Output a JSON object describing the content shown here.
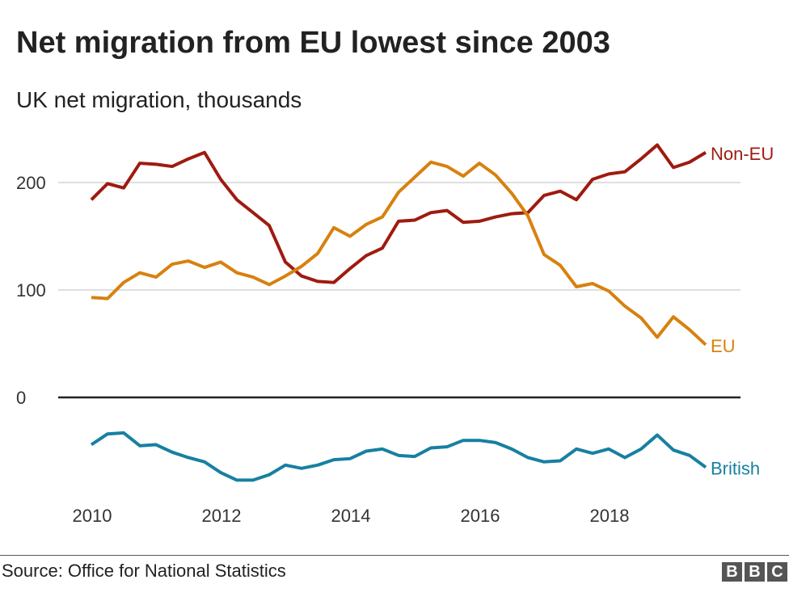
{
  "chart_data": {
    "type": "line",
    "title": "Net migration from EU lowest since 2003",
    "subtitle": "UK net migration, thousands",
    "xlabel": "",
    "ylabel": "",
    "xlim": [
      2010,
      2019.5
    ],
    "ylim": [
      -90,
      245
    ],
    "x_ticks": [
      2010,
      2012,
      2014,
      2016,
      2018
    ],
    "y_ticks": [
      0,
      100,
      200
    ],
    "grid": "horizontal",
    "legend": "direct labels at line ends (right)",
    "x": [
      2010,
      2010.25,
      2010.5,
      2010.75,
      2011,
      2011.25,
      2011.5,
      2011.75,
      2012,
      2012.25,
      2012.5,
      2012.75,
      2013,
      2013.25,
      2013.5,
      2013.75,
      2014,
      2014.25,
      2014.5,
      2014.75,
      2015,
      2015.25,
      2015.5,
      2015.75,
      2016,
      2016.25,
      2016.5,
      2016.75,
      2017,
      2017.25,
      2017.5,
      2017.75,
      2018,
      2018.25,
      2018.5,
      2018.75,
      2019,
      2019.25,
      2019.5
    ],
    "series": [
      {
        "name": "Non-EU",
        "color": "#9e1b10",
        "values": [
          184,
          199,
          195,
          218,
          217,
          215,
          222,
          228,
          203,
          184,
          172,
          160,
          126,
          113,
          108,
          107,
          120,
          132,
          139,
          164,
          165,
          172,
          174,
          163,
          164,
          168,
          171,
          172,
          188,
          192,
          184,
          203,
          208,
          210,
          222,
          235,
          214,
          219,
          228
        ]
      },
      {
        "name": "EU",
        "color": "#d7810e",
        "values": [
          93,
          92,
          107,
          116,
          112,
          124,
          127,
          121,
          126,
          116,
          112,
          105,
          113,
          122,
          134,
          158,
          150,
          161,
          168,
          191,
          205,
          219,
          215,
          206,
          218,
          207,
          190,
          169,
          133,
          123,
          103,
          106,
          99,
          85,
          74,
          56,
          75,
          63,
          49
        ]
      },
      {
        "name": "British",
        "color": "#1780a1",
        "values": [
          -44,
          -34,
          -33,
          -45,
          -44,
          -51,
          -56,
          -60,
          -70,
          -77,
          -77,
          -72,
          -63,
          -66,
          -63,
          -58,
          -57,
          -50,
          -48,
          -54,
          -55,
          -47,
          -46,
          -40,
          -40,
          -42,
          -48,
          -56,
          -60,
          -59,
          -48,
          -52,
          -48,
          -56,
          -48,
          -35,
          -49,
          -54,
          -65
        ]
      }
    ]
  },
  "footer": {
    "source": "Source: Office for National Statistics",
    "logo": [
      "B",
      "B",
      "C"
    ]
  }
}
